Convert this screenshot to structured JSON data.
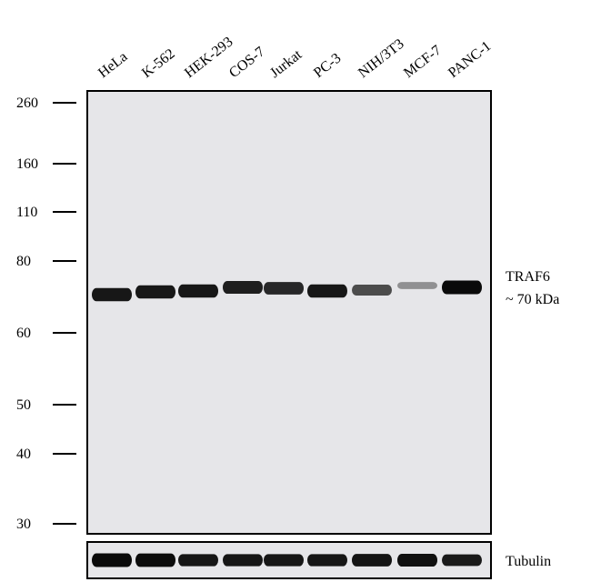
{
  "lanes": [
    {
      "label": "HeLa",
      "traf6_intensity": 0.95,
      "tubulin_intensity": 1.0
    },
    {
      "label": "K-562",
      "traf6_intensity": 0.95,
      "tubulin_intensity": 0.98
    },
    {
      "label": "HEK-293",
      "traf6_intensity": 0.95,
      "tubulin_intensity": 0.85
    },
    {
      "label": "COS-7",
      "traf6_intensity": 0.92,
      "tubulin_intensity": 0.85
    },
    {
      "label": "Jurkat",
      "traf6_intensity": 0.88,
      "tubulin_intensity": 0.85
    },
    {
      "label": "PC-3",
      "traf6_intensity": 0.95,
      "tubulin_intensity": 0.85
    },
    {
      "label": "NIH/3T3",
      "traf6_intensity": 0.72,
      "tubulin_intensity": 0.88
    },
    {
      "label": "MCF-7",
      "traf6_intensity": 0.35,
      "tubulin_intensity": 0.92
    },
    {
      "label": "PANC-1",
      "traf6_intensity": 1.0,
      "tubulin_intensity": 0.8
    }
  ],
  "markers": [
    {
      "label": "260",
      "kda": 260
    },
    {
      "label": "160",
      "kda": 160
    },
    {
      "label": "110",
      "kda": 110
    },
    {
      "label": "80",
      "kda": 80
    },
    {
      "label": "60",
      "kda": 60
    },
    {
      "label": "50",
      "kda": 50
    },
    {
      "label": "40",
      "kda": 40
    },
    {
      "label": "30",
      "kda": 30
    }
  ],
  "target": {
    "name": "TRAF6",
    "size": "~ 70 kDa"
  },
  "loading_control": {
    "name": "Tubulin"
  },
  "colors": {
    "membrane": "#e6e6e9",
    "band": "#0a0a0a",
    "frame": "#000000"
  }
}
